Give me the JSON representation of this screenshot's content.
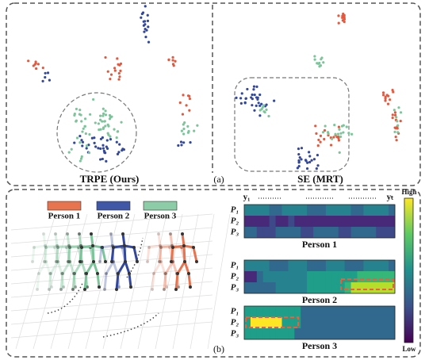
{
  "panel_a": {
    "label": "(a)",
    "plots": [
      {
        "title": "TRPE (Ours)"
      },
      {
        "title": "SE (MRT)"
      }
    ]
  },
  "panel_b": {
    "label": "(b)",
    "legend": [
      "Person 1",
      "Person 2",
      "Person 3"
    ],
    "time_start": "y₁",
    "time_end": "yₜ",
    "heatmaps": [
      {
        "title": "Person 1",
        "rows": [
          "P₁",
          "P₂",
          "P₃"
        ]
      },
      {
        "title": "Person 2",
        "rows": [
          "P₁",
          "P₂",
          "P₃"
        ]
      },
      {
        "title": "Person 3",
        "rows": [
          "P₁",
          "P₂",
          "P₃"
        ]
      }
    ],
    "colorbar": {
      "high": "High",
      "low": "Low"
    }
  }
}
